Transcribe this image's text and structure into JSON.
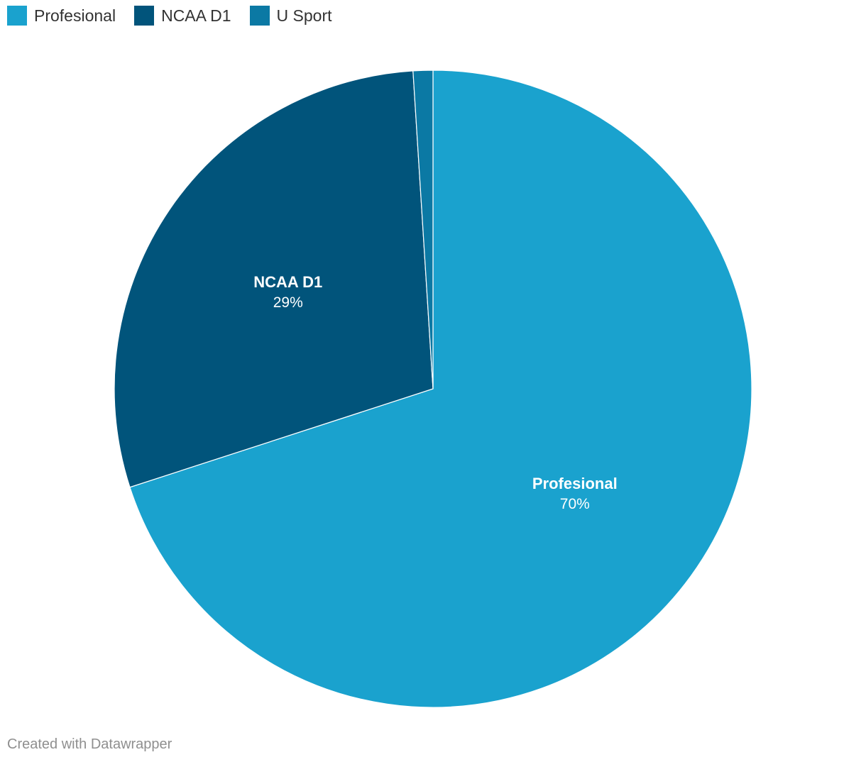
{
  "chart_data": {
    "type": "pie",
    "title": "",
    "categories": [
      "Profesional",
      "NCAA D1",
      "U Sport"
    ],
    "values": [
      70,
      29,
      1
    ],
    "display_labels": [
      "70%",
      "29%",
      ""
    ],
    "colors": [
      "#1aa2ce",
      "#01547b",
      "#0b79a4"
    ],
    "legend_position": "top-left",
    "start_angle_deg": 0,
    "direction": "clockwise"
  },
  "legend": {
    "items": [
      {
        "label": "Profesional",
        "color": "#1aa2ce"
      },
      {
        "label": "NCAA D1",
        "color": "#01547b"
      },
      {
        "label": "U Sport",
        "color": "#0b79a4"
      }
    ]
  },
  "footer": {
    "credit": "Created with Datawrapper"
  }
}
